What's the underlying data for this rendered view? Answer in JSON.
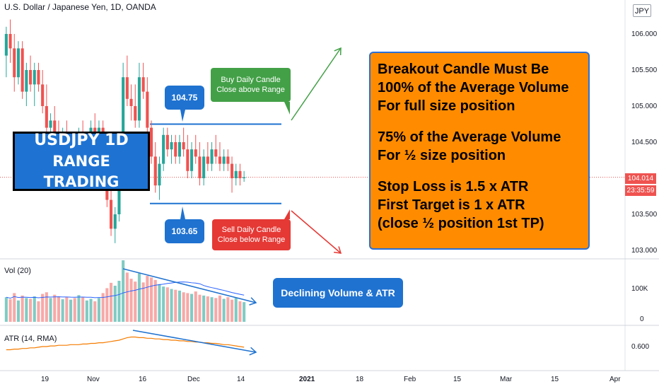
{
  "header": {
    "title": "U.S. Dollar / Japanese Yen, 1D, OANDA",
    "currency_button": "JPY"
  },
  "labels": {
    "main_title_line1": "USDJPY 1D",
    "main_title_line2": "RANGE TRADING",
    "resistance_value": "104.75",
    "support_value": "103.65",
    "buy_note_line1": "Buy Daily Candle",
    "buy_note_line2": "Close above Range",
    "sell_note_line1": "Sell Daily Candle",
    "sell_note_line2": "Close below Range",
    "rules_lines": [
      "Breakout Candle Must Be",
      "100% of the Average Volume",
      "For full size position",
      "",
      "75% of the Average Volume",
      "For ½ size position",
      "",
      "Stop Loss is 1.5 x ATR",
      "First Target is 1 x ATR",
      "(close ½ position 1st TP)"
    ],
    "volume_note": "Declining Volume & ATR"
  },
  "indicators": {
    "volume_label": "Vol (20)",
    "atr_label": "ATR (14, RMA)"
  },
  "price_axis": {
    "ticks": [
      "106.000",
      "105.500",
      "105.000",
      "104.500",
      "104.000",
      "103.500",
      "103.000"
    ],
    "current_price": "104.014",
    "countdown": "23:35:59"
  },
  "volume_axis": {
    "ticks": [
      "100K",
      "0"
    ]
  },
  "atr_axis": {
    "ticks": [
      "0.600"
    ]
  },
  "time_axis": {
    "ticks": [
      "19",
      "Nov",
      "16",
      "Dec",
      "14",
      "2021",
      "18",
      "Feb",
      "15",
      "Mar",
      "15",
      "Apr"
    ]
  },
  "colors": {
    "up": "#26a69a",
    "down": "#ef5350",
    "accent_blue": "#1f72d0",
    "orange": "#ff8c00",
    "atr_line": "#f57c00",
    "ma_line": "#2962ff"
  },
  "chart_data": {
    "type": "candlestick",
    "title": "U.S. Dollar / Japanese Yen, 1D, OANDA",
    "ylim": [
      102.9,
      106.4
    ],
    "range_high": 104.75,
    "range_low": 103.65,
    "last_price": 104.014,
    "candles": [
      [
        105.7,
        106.1,
        105.4,
        106.0
      ],
      [
        106.0,
        106.2,
        105.6,
        105.8
      ],
      [
        105.8,
        106.0,
        105.2,
        105.4
      ],
      [
        105.4,
        105.9,
        105.3,
        105.8
      ],
      [
        105.8,
        105.9,
        105.1,
        105.2
      ],
      [
        105.2,
        105.6,
        105.0,
        105.5
      ],
      [
        105.5,
        105.7,
        105.2,
        105.3
      ],
      [
        105.3,
        105.6,
        105.0,
        105.5
      ],
      [
        105.5,
        105.6,
        105.2,
        105.3
      ],
      [
        105.3,
        105.5,
        104.9,
        105.0
      ],
      [
        105.0,
        105.3,
        104.6,
        104.7
      ],
      [
        104.7,
        104.9,
        104.4,
        104.8
      ],
      [
        104.8,
        105.0,
        104.5,
        104.6
      ],
      [
        104.6,
        104.8,
        104.3,
        104.4
      ],
      [
        104.4,
        104.7,
        104.2,
        104.6
      ],
      [
        104.6,
        104.8,
        104.3,
        104.4
      ],
      [
        104.4,
        104.6,
        104.1,
        104.5
      ],
      [
        104.5,
        104.6,
        104.1,
        104.2
      ],
      [
        104.2,
        104.7,
        104.1,
        104.6
      ],
      [
        104.6,
        104.8,
        104.3,
        104.4
      ],
      [
        104.4,
        104.6,
        104.1,
        104.5
      ],
      [
        104.5,
        104.8,
        104.4,
        104.7
      ],
      [
        104.7,
        104.9,
        104.5,
        104.6
      ],
      [
        104.6,
        104.8,
        104.4,
        104.7
      ],
      [
        104.7,
        104.8,
        103.9,
        104.0
      ],
      [
        104.0,
        104.3,
        103.6,
        103.7
      ],
      [
        103.7,
        103.9,
        103.2,
        103.3
      ],
      [
        103.3,
        103.6,
        103.1,
        103.5
      ],
      [
        103.5,
        104.2,
        103.4,
        104.1
      ],
      [
        104.1,
        105.6,
        104.0,
        105.4
      ],
      [
        105.4,
        105.7,
        105.0,
        105.1
      ],
      [
        105.1,
        105.3,
        104.8,
        105.0
      ],
      [
        105.0,
        105.3,
        104.7,
        104.8
      ],
      [
        104.8,
        105.6,
        104.7,
        105.4
      ],
      [
        105.4,
        105.6,
        105.1,
        105.2
      ],
      [
        105.2,
        105.4,
        104.6,
        104.7
      ],
      [
        104.7,
        104.8,
        104.2,
        104.3
      ],
      [
        104.3,
        104.5,
        103.8,
        103.9
      ],
      [
        103.9,
        104.3,
        103.7,
        104.2
      ],
      [
        104.2,
        104.7,
        104.1,
        104.6
      ],
      [
        104.6,
        104.7,
        104.3,
        104.4
      ],
      [
        104.4,
        104.6,
        104.2,
        104.5
      ],
      [
        104.5,
        104.6,
        104.2,
        104.3
      ],
      [
        104.3,
        104.6,
        104.2,
        104.5
      ],
      [
        104.5,
        104.7,
        104.3,
        104.4
      ],
      [
        104.4,
        104.6,
        104.0,
        104.1
      ],
      [
        104.1,
        104.5,
        104.0,
        104.4
      ],
      [
        104.4,
        104.6,
        104.2,
        104.3
      ],
      [
        104.3,
        104.5,
        103.9,
        104.0
      ],
      [
        104.0,
        104.4,
        103.9,
        104.3
      ],
      [
        104.3,
        104.5,
        104.1,
        104.2
      ],
      [
        104.2,
        104.5,
        104.1,
        104.4
      ],
      [
        104.4,
        104.6,
        104.2,
        104.3
      ],
      [
        104.3,
        104.5,
        104.1,
        104.2
      ],
      [
        104.2,
        104.4,
        104.1,
        104.3
      ],
      [
        104.3,
        104.4,
        104.1,
        104.2
      ],
      [
        104.2,
        104.3,
        103.8,
        104.0
      ],
      [
        104.0,
        104.2,
        103.9,
        104.1
      ],
      [
        104.1,
        104.2,
        103.9,
        104.0
      ],
      [
        104.0,
        104.1,
        103.95,
        104.014
      ]
    ],
    "volume": [
      60,
      55,
      70,
      52,
      64,
      58,
      56,
      62,
      50,
      68,
      72,
      58,
      66,
      62,
      55,
      60,
      54,
      58,
      65,
      60,
      52,
      56,
      50,
      58,
      70,
      82,
      95,
      88,
      100,
      150,
      120,
      105,
      98,
      118,
      96,
      112,
      108,
      102,
      92,
      86,
      84,
      80,
      78,
      76,
      72,
      70,
      68,
      74,
      66,
      64,
      62,
      60,
      58,
      64,
      56,
      60,
      54,
      58,
      50,
      48
    ],
    "volume_ma": 68,
    "atr": [
      0.55,
      0.55,
      0.56,
      0.56,
      0.57,
      0.57,
      0.58,
      0.58,
      0.59,
      0.6,
      0.6,
      0.61,
      0.61,
      0.62,
      0.62,
      0.62,
      0.63,
      0.63,
      0.63,
      0.64,
      0.64,
      0.65,
      0.65,
      0.66,
      0.66,
      0.67,
      0.68,
      0.69,
      0.7,
      0.72,
      0.74,
      0.75,
      0.75,
      0.74,
      0.74,
      0.73,
      0.73,
      0.72,
      0.72,
      0.71,
      0.71,
      0.7,
      0.7,
      0.69,
      0.69,
      0.68,
      0.68,
      0.67,
      0.67,
      0.66,
      0.66,
      0.65,
      0.65,
      0.64,
      0.63,
      0.63,
      0.62,
      0.61,
      0.6,
      0.59
    ]
  }
}
